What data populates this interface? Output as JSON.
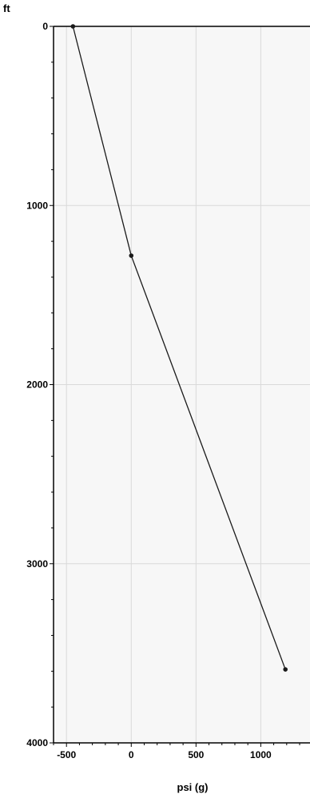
{
  "chart_data": {
    "type": "line",
    "title": "",
    "xlabel": "psi (g)",
    "ylabel": "ft",
    "xlim": [
      -600,
      1380
    ],
    "ylim": [
      4000,
      0
    ],
    "y_inverted": true,
    "x_ticks": [
      -500,
      0,
      500,
      1000
    ],
    "y_ticks": [
      0,
      1000,
      2000,
      3000,
      4000
    ],
    "grid": true,
    "series": [
      {
        "points": [
          {
            "x": -450,
            "y": 0
          },
          {
            "x": 0,
            "y": 1280
          },
          {
            "x": 1190,
            "y": 3590
          }
        ]
      }
    ],
    "colors": {
      "plot_background": "#f7f7f7",
      "gridline": "#d9d9d9",
      "line": "#1a1a1a",
      "axis": "#000000"
    }
  }
}
